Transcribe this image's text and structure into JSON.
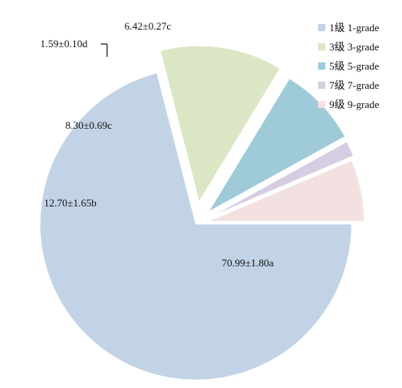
{
  "chart_data": {
    "type": "pie",
    "title": "",
    "series": [
      {
        "legend": "1级 1-grade",
        "value": 70.99,
        "label": "70.99±1.80a",
        "color": "#c2d3e6"
      },
      {
        "legend": "3级 3-grade",
        "value": 12.7,
        "label": "12.70±1.65b",
        "color": "#dbe6c4"
      },
      {
        "legend": "5级 5-grade",
        "value": 8.3,
        "label": "8.30±0.69c",
        "color": "#9fcbd9"
      },
      {
        "legend": "7级 7-grade",
        "value": 1.59,
        "label": "1.59±0.10d",
        "color": "#d6cde2"
      },
      {
        "legend": "9级 9-grade",
        "value": 6.42,
        "label": "6.42±0.27c",
        "color": "#f3e1e2"
      }
    ],
    "legend_position": "top-right",
    "exploded": true
  }
}
